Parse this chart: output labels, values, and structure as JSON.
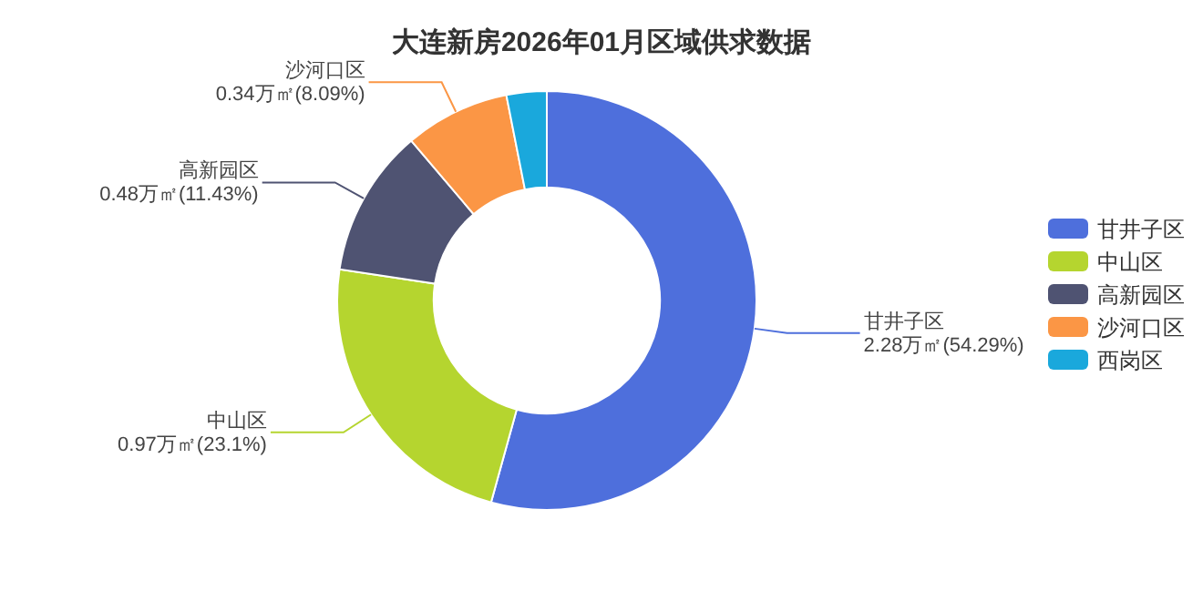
{
  "chart_data": {
    "type": "donut",
    "title": "大连新房2026年01月区域供求数据",
    "categories": [
      "甘井子区",
      "中山区",
      "高新园区",
      "沙河口区",
      "西岗区"
    ],
    "values": [
      2.28,
      0.97,
      0.48,
      0.34,
      0.13
    ],
    "colors": [
      "#4e6fdc",
      "#b5d52f",
      "#4f5372",
      "#fb9645",
      "#1aa8dc"
    ],
    "value_labels": [
      "2.28万㎡(54.29%)",
      "0.97万㎡(23.1%)",
      "0.48万㎡(11.43%)",
      "0.34万㎡(8.09%)",
      null
    ],
    "legend": "right"
  }
}
